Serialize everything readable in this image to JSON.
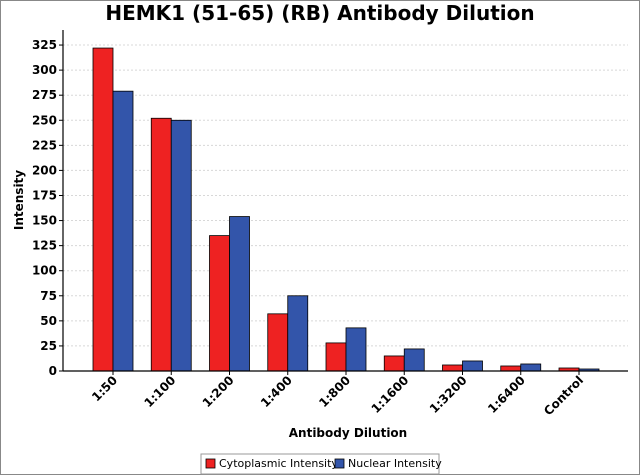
{
  "chart_data": {
    "type": "bar",
    "title": "HEMK1 (51-65) (RB) Antibody Dilution",
    "xlabel": "Antibody Dilution",
    "ylabel": "Intensity",
    "categories": [
      "1:50",
      "1:100",
      "1:200",
      "1:400",
      "1:800",
      "1:1600",
      "1:3200",
      "1:6400",
      "Control"
    ],
    "series": [
      {
        "name": "Cytoplasmic Intensity",
        "color": "#ee2222",
        "values": [
          322,
          252,
          135,
          57,
          28,
          15,
          6,
          5,
          3
        ]
      },
      {
        "name": "Nuclear Intensity",
        "color": "#3355aa",
        "values": [
          279,
          250,
          154,
          75,
          43,
          22,
          10,
          7,
          2
        ]
      }
    ],
    "ylim": [
      0,
      340
    ],
    "yticks": [
      0,
      25,
      50,
      75,
      100,
      125,
      150,
      175,
      200,
      225,
      250,
      275,
      300,
      325
    ],
    "grid": true,
    "legend_position": "bottom"
  }
}
